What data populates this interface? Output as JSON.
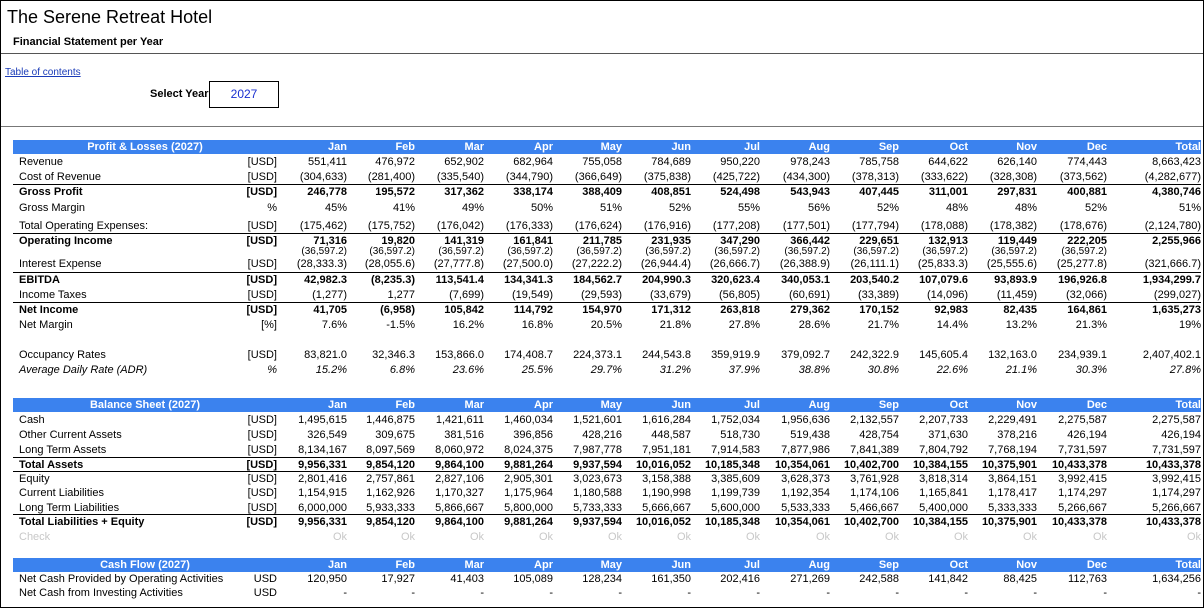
{
  "header": {
    "title": "The Serene Retreat Hotel",
    "subtitle": "Financial Statement per Year"
  },
  "toc_link": "Table of contents",
  "year_selector": {
    "label": "Select Year",
    "value": "2027"
  },
  "sections": [
    {
      "header": "Profit & Losses (2027)",
      "months": [
        "Jan",
        "Feb",
        "Mar",
        "Apr",
        "May",
        "Jun",
        "Jul",
        "Aug",
        "Sep",
        "Oct",
        "Nov",
        "Dec"
      ],
      "total": "Total",
      "rows": [
        {
          "label": "Revenue",
          "unit": "[USD]",
          "values": [
            "551,411",
            "476,972",
            "652,902",
            "682,964",
            "755,058",
            "784,689",
            "950,220",
            "978,243",
            "785,758",
            "644,622",
            "626,140",
            "774,443"
          ],
          "total": "8,663,423"
        },
        {
          "label": "Cost of Revenue",
          "unit": "[USD]",
          "values": [
            "(304,633)",
            "(281,400)",
            "(335,540)",
            "(344,790)",
            "(366,649)",
            "(375,838)",
            "(425,722)",
            "(434,300)",
            "(378,313)",
            "(333,622)",
            "(328,308)",
            "(373,562)"
          ],
          "total": "(4,282,677)"
        },
        {
          "label": "Gross Profit",
          "unit": "[USD]",
          "values": [
            "246,778",
            "195,572",
            "317,362",
            "338,174",
            "388,409",
            "408,851",
            "524,498",
            "543,943",
            "407,445",
            "311,001",
            "297,831",
            "400,881"
          ],
          "total": "4,380,746"
        },
        {
          "label": "Gross Margin",
          "unit": "%",
          "values": [
            "45%",
            "41%",
            "49%",
            "50%",
            "51%",
            "52%",
            "55%",
            "56%",
            "52%",
            "48%",
            "48%",
            "52%"
          ],
          "total": "51%"
        },
        {
          "label": "Total Operating Expenses:",
          "unit": "[USD]",
          "values": [
            "(175,462)",
            "(175,752)",
            "(176,042)",
            "(176,333)",
            "(176,624)",
            "(176,916)",
            "(177,208)",
            "(177,501)",
            "(177,794)",
            "(178,088)",
            "(178,382)",
            "(178,676)"
          ],
          "total": "(2,124,780)"
        },
        {
          "label": "Operating Income",
          "unit": "[USD]",
          "values": [
            "71,316",
            "19,820",
            "141,319",
            "161,841",
            "211,785",
            "231,935",
            "347,290",
            "366,442",
            "229,651",
            "132,913",
            "119,449",
            "222,205"
          ],
          "total": "2,255,966"
        },
        {
          "values": [
            "(36,597.2)",
            "(36,597.2)",
            "(36,597.2)",
            "(36,597.2)",
            "(36,597.2)",
            "(36,597.2)",
            "(36,597.2)",
            "(36,597.2)",
            "(36,597.2)",
            "(36,597.2)",
            "(36,597.2)",
            "(36,597.2)"
          ]
        },
        {
          "label": "Interest Expense",
          "unit": "[USD]",
          "values": [
            "(28,333.3)",
            "(28,055.6)",
            "(27,777.8)",
            "(27,500.0)",
            "(27,222.2)",
            "(26,944.4)",
            "(26,666.7)",
            "(26,388.9)",
            "(26,111.1)",
            "(25,833.3)",
            "(25,555.6)",
            "(25,277.8)"
          ],
          "total": "(321,666.7)"
        },
        {
          "label": "EBITDA",
          "unit": "[USD]",
          "values": [
            "42,982.3",
            "(8,235.3)",
            "113,541.4",
            "134,341.3",
            "184,562.7",
            "204,990.3",
            "320,623.4",
            "340,053.1",
            "203,540.2",
            "107,079.6",
            "93,893.9",
            "196,926.8"
          ],
          "total": "1,934,299.7"
        },
        {
          "label": "Income Taxes",
          "unit": "[USD]",
          "values": [
            "(1,277)",
            "1,277",
            "(7,699)",
            "(19,549)",
            "(29,593)",
            "(33,679)",
            "(56,805)",
            "(60,691)",
            "(33,389)",
            "(14,096)",
            "(11,459)",
            "(32,066)"
          ],
          "total": "(299,027)"
        },
        {
          "label": "Net Income",
          "unit": "[USD]",
          "values": [
            "41,705",
            "(6,958)",
            "105,842",
            "114,792",
            "154,970",
            "171,312",
            "263,818",
            "279,362",
            "170,152",
            "92,983",
            "82,435",
            "164,861"
          ],
          "total": "1,635,273"
        },
        {
          "label": "Net Margin",
          "unit": "[%]",
          "values": [
            "7.6%",
            "-1.5%",
            "16.2%",
            "16.8%",
            "20.5%",
            "21.8%",
            "27.8%",
            "28.6%",
            "21.7%",
            "14.4%",
            "13.2%",
            "21.3%"
          ],
          "total": "19%"
        },
        {
          "label": "Occupancy Rates",
          "unit": "[USD]",
          "values": [
            "83,821.0",
            "32,346.3",
            "153,866.0",
            "174,408.7",
            "224,373.1",
            "244,543.8",
            "359,919.9",
            "379,092.7",
            "242,322.9",
            "145,605.4",
            "132,163.0",
            "234,939.1"
          ],
          "total": "2,407,402.1"
        },
        {
          "label": "Average Daily Rate (ADR)",
          "unit": "%",
          "values": [
            "15.2%",
            "6.8%",
            "23.6%",
            "25.5%",
            "29.7%",
            "31.2%",
            "37.9%",
            "38.8%",
            "30.8%",
            "22.6%",
            "21.1%",
            "30.3%"
          ],
          "total": "27.8%"
        }
      ]
    },
    {
      "header": "Balance Sheet (2027)",
      "months": [
        "Jan",
        "Feb",
        "Mar",
        "Apr",
        "May",
        "Jun",
        "Jul",
        "Aug",
        "Sep",
        "Oct",
        "Nov",
        "Dec"
      ],
      "total": "Total",
      "rows": [
        {
          "label": "Cash",
          "unit": "[USD]",
          "values": [
            "1,495,615",
            "1,446,875",
            "1,421,611",
            "1,460,034",
            "1,521,601",
            "1,616,284",
            "1,752,034",
            "1,956,636",
            "2,132,557",
            "2,207,733",
            "2,229,491",
            "2,275,587"
          ],
          "total": "2,275,587"
        },
        {
          "label": "Other Current Assets",
          "unit": "[USD]",
          "values": [
            "326,549",
            "309,675",
            "381,516",
            "396,856",
            "428,216",
            "448,587",
            "518,730",
            "519,438",
            "428,754",
            "371,630",
            "378,216",
            "426,194"
          ],
          "total": "426,194"
        },
        {
          "label": "Long Term Assets",
          "unit": "[USD]",
          "values": [
            "8,134,167",
            "8,097,569",
            "8,060,972",
            "8,024,375",
            "7,987,778",
            "7,951,181",
            "7,914,583",
            "7,877,986",
            "7,841,389",
            "7,804,792",
            "7,768,194",
            "7,731,597"
          ],
          "total": "7,731,597"
        },
        {
          "label": "Total Assets",
          "unit": "[USD]",
          "values": [
            "9,956,331",
            "9,854,120",
            "9,864,100",
            "9,881,264",
            "9,937,594",
            "10,016,052",
            "10,185,348",
            "10,354,061",
            "10,402,700",
            "10,384,155",
            "10,375,901",
            "10,433,378"
          ],
          "total": "10,433,378"
        },
        {
          "label": "Equity",
          "unit": "[USD]",
          "values": [
            "2,801,416",
            "2,757,861",
            "2,827,106",
            "2,905,301",
            "3,023,673",
            "3,158,388",
            "3,385,609",
            "3,628,373",
            "3,761,928",
            "3,818,314",
            "3,864,151",
            "3,992,415"
          ],
          "total": "3,992,415"
        },
        {
          "label": "Current Liabilities",
          "unit": "[USD]",
          "values": [
            "1,154,915",
            "1,162,926",
            "1,170,327",
            "1,175,964",
            "1,180,588",
            "1,190,998",
            "1,199,739",
            "1,192,354",
            "1,174,106",
            "1,165,841",
            "1,178,417",
            "1,174,297"
          ],
          "total": "1,174,297"
        },
        {
          "label": "Long Term Liabilities",
          "unit": "[USD]",
          "values": [
            "6,000,000",
            "5,933,333",
            "5,866,667",
            "5,800,000",
            "5,733,333",
            "5,666,667",
            "5,600,000",
            "5,533,333",
            "5,466,667",
            "5,400,000",
            "5,333,333",
            "5,266,667"
          ],
          "total": "5,266,667"
        },
        {
          "label": "Total Liabilities + Equity",
          "unit": "[USD]",
          "values": [
            "9,956,331",
            "9,854,120",
            "9,864,100",
            "9,881,264",
            "9,937,594",
            "10,016,052",
            "10,185,348",
            "10,354,061",
            "10,402,700",
            "10,384,155",
            "10,375,901",
            "10,433,378"
          ],
          "total": "10,433,378"
        },
        {
          "label": "Check",
          "values": [
            "Ok",
            "Ok",
            "Ok",
            "Ok",
            "Ok",
            "Ok",
            "Ok",
            "Ok",
            "Ok",
            "Ok",
            "Ok",
            "Ok"
          ],
          "total": "Ok"
        }
      ]
    },
    {
      "header": "Cash Flow (2027)",
      "months": [
        "Jan",
        "Feb",
        "Mar",
        "Apr",
        "May",
        "Jun",
        "Jul",
        "Aug",
        "Sep",
        "Oct",
        "Nov",
        "Dec"
      ],
      "total": "Total",
      "rows": [
        {
          "label": "Net Cash Provided by Operating Activities",
          "unit": "USD",
          "values": [
            "120,950",
            "17,927",
            "41,403",
            "105,089",
            "128,234",
            "161,350",
            "202,416",
            "271,269",
            "242,588",
            "141,842",
            "88,425",
            "112,763"
          ],
          "total": "1,634,256"
        },
        {
          "label": "Net Cash from Investing Activities",
          "unit": "USD",
          "values": [
            "-",
            "-",
            "-",
            "-",
            "-",
            "-",
            "-",
            "-",
            "-",
            "-",
            "-",
            "-"
          ],
          "total": "-"
        }
      ]
    }
  ]
}
